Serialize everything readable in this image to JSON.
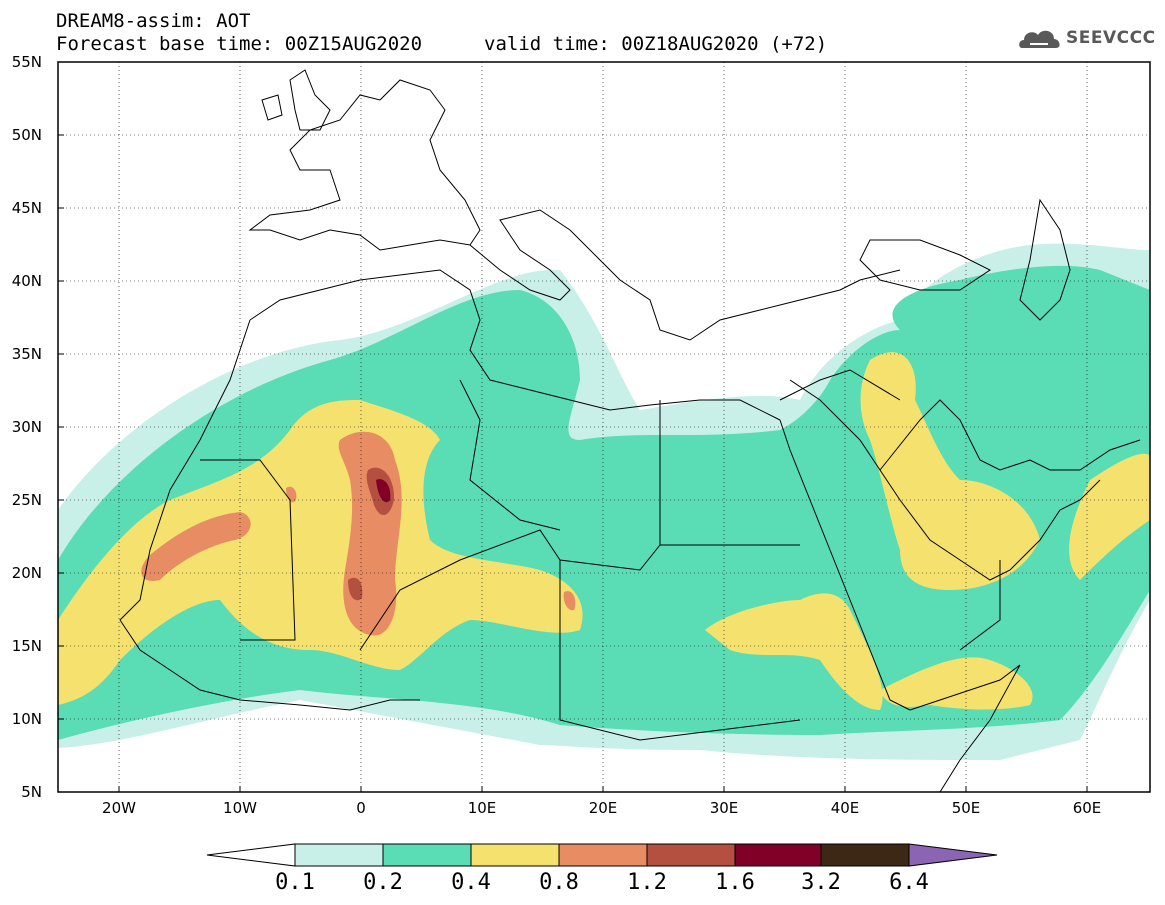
{
  "header": {
    "title_line1": "DREAM8-assim: AOT",
    "base_time": "Forecast base time: 00Z15AUG2020",
    "valid_time": "valid time: 00Z18AUG2020 (+72)",
    "logo_text": "SEEVCCC",
    "logo_icon": "cloud-logo-icon"
  },
  "axes": {
    "lat_labels": [
      "55N",
      "50N",
      "45N",
      "40N",
      "35N",
      "30N",
      "25N",
      "20N",
      "15N",
      "10N",
      "5N"
    ],
    "lat_values": [
      55,
      50,
      45,
      40,
      35,
      30,
      25,
      20,
      15,
      10,
      5
    ],
    "lon_labels": [
      "20W",
      "10W",
      "0",
      "10E",
      "20E",
      "30E",
      "40E",
      "50E",
      "60E"
    ],
    "lon_values": [
      -20,
      -10,
      0,
      10,
      20,
      30,
      40,
      50,
      60
    ],
    "lon_range": [
      -25,
      65
    ],
    "lat_range": [
      5,
      55
    ],
    "grid": true
  },
  "colorbar": {
    "labels": [
      "0.1",
      "0.2",
      "0.4",
      "0.8",
      "1.2",
      "1.6",
      "3.2",
      "6.4"
    ],
    "colors": [
      "#c8f0e8",
      "#5adcb4",
      "#f5e26e",
      "#e88c64",
      "#b45040",
      "#800028",
      "#3c2814"
    ],
    "overflow_color": "#8c64b4",
    "underflow_color": "#ffffff"
  }
}
